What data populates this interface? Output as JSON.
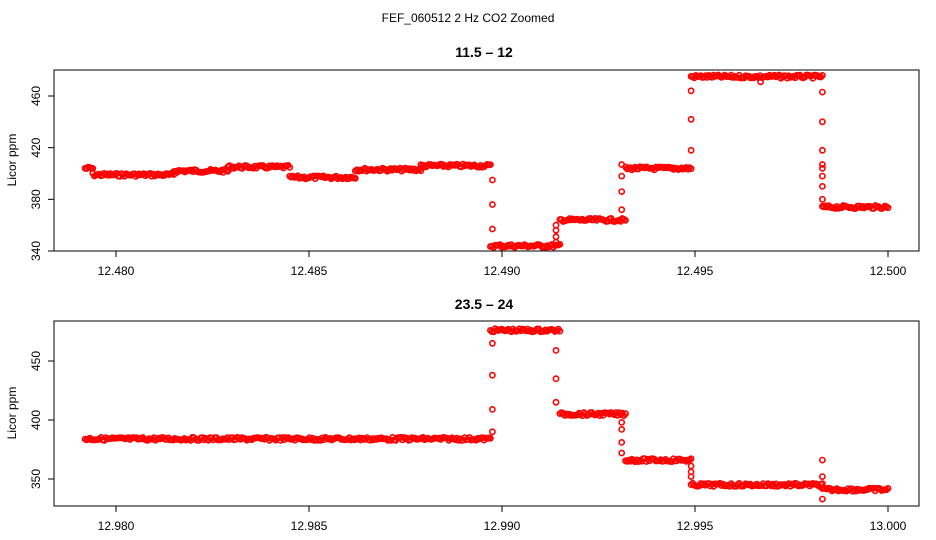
{
  "figure": {
    "suptitle": "FEF_060512  2 Hz CO2 Zoomed"
  },
  "chart_data": [
    {
      "type": "scatter",
      "title": "11.5 – 12",
      "xlabel": "",
      "ylabel": "Licor ppm",
      "xlim": [
        12.479,
        12.5
      ],
      "ylim": [
        340,
        480
      ],
      "xticks": [
        12.48,
        12.485,
        12.49,
        12.495,
        12.5
      ],
      "xtick_labels": [
        "12.480",
        "12.485",
        "12.490",
        "12.495",
        "12.500"
      ],
      "yticks": [
        340,
        380,
        420,
        460
      ],
      "ytick_labels": [
        "340",
        "380",
        "420",
        "460"
      ],
      "marker_color": "#ff0000",
      "grid": false,
      "segments": [
        {
          "x_start": 12.4792,
          "x_end": 12.4794,
          "y": 404
        },
        {
          "x_start": 12.4794,
          "x_end": 12.4815,
          "y": 399
        },
        {
          "x_start": 12.4815,
          "x_end": 12.4829,
          "y": 402
        },
        {
          "x_start": 12.4829,
          "x_end": 12.4845,
          "y": 405
        },
        {
          "x_start": 12.4845,
          "x_end": 12.4862,
          "y": 397
        },
        {
          "x_start": 12.4862,
          "x_end": 12.4879,
          "y": 403
        },
        {
          "x_start": 12.4879,
          "x_end": 12.4897,
          "y": 406
        },
        {
          "x_start": 12.4897,
          "x_end": 12.4915,
          "y": 344
        },
        {
          "x_start": 12.4915,
          "x_end": 12.4932,
          "y": 364
        },
        {
          "x_start": 12.4932,
          "x_end": 12.4949,
          "y": 404
        },
        {
          "x_start": 12.4949,
          "x_end": 12.4983,
          "y": 475
        },
        {
          "x_start": 12.4983,
          "x_end": 12.5,
          "y": 374
        }
      ],
      "transitions": [
        {
          "x": 12.48975,
          "y": [
            395,
            376,
            357
          ]
        },
        {
          "x": 12.4914,
          "y": [
            347,
            351,
            356,
            360
          ]
        },
        {
          "x": 12.4931,
          "y": [
            372,
            386,
            398,
            407
          ]
        },
        {
          "x": 12.4949,
          "y": [
            418,
            442,
            464
          ]
        },
        {
          "x": 12.4983,
          "y": [
            463,
            440,
            418,
            407,
            404,
            398,
            390,
            380
          ]
        },
        {
          "x": 12.4967,
          "y": [
            471
          ]
        }
      ]
    },
    {
      "type": "scatter",
      "title": "23.5 – 24",
      "xlabel": "",
      "ylabel": "Licor ppm",
      "xlim": [
        12.979,
        13.0
      ],
      "ylim": [
        330,
        485
      ],
      "xticks": [
        12.98,
        12.985,
        12.99,
        12.995,
        13.0
      ],
      "xtick_labels": [
        "12.980",
        "12.985",
        "12.990",
        "12.995",
        "13.000"
      ],
      "yticks": [
        350,
        400,
        450
      ],
      "ytick_labels": [
        "350",
        "400",
        "450"
      ],
      "marker_color": "#ff0000",
      "grid": false,
      "segments": [
        {
          "x_start": 12.9792,
          "x_end": 12.9897,
          "y": 384
        },
        {
          "x_start": 12.9897,
          "x_end": 12.9915,
          "y": 476
        },
        {
          "x_start": 12.9915,
          "x_end": 12.9932,
          "y": 405
        },
        {
          "x_start": 12.9932,
          "x_end": 12.9949,
          "y": 366
        },
        {
          "x_start": 12.9949,
          "x_end": 12.9983,
          "y": 345
        },
        {
          "x_start": 12.9983,
          "x_end": 13.0,
          "y": 341
        }
      ],
      "transitions": [
        {
          "x": 12.98975,
          "y": [
            390,
            409,
            438,
            465
          ]
        },
        {
          "x": 12.9914,
          "y": [
            459,
            435,
            415
          ]
        },
        {
          "x": 12.9931,
          "y": [
            398,
            392,
            381,
            372
          ]
        },
        {
          "x": 12.9949,
          "y": [
            361,
            356,
            352
          ]
        },
        {
          "x": 12.9983,
          "y": [
            366,
            352,
            333
          ]
        }
      ]
    }
  ]
}
